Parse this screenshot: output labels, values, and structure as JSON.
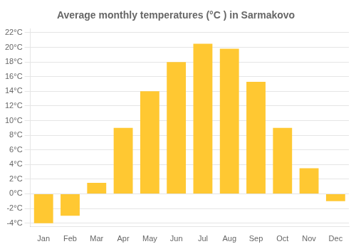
{
  "chart_data": {
    "type": "bar",
    "title": "Average monthly temperatures (°C ) in Sarmakovo",
    "categories": [
      "Jan",
      "Feb",
      "Mar",
      "Apr",
      "May",
      "Jun",
      "Jul",
      "Aug",
      "Sep",
      "Oct",
      "Nov",
      "Dec"
    ],
    "values": [
      -4,
      -3,
      1.5,
      9,
      14,
      18,
      20.5,
      19.8,
      15.3,
      9,
      3.5,
      -1
    ],
    "color": "#FFC832",
    "ylim": [
      -4.5,
      22.5
    ],
    "yticks": [
      {
        "value": -4,
        "label": "-4°C"
      },
      {
        "value": -2,
        "label": "-2°C"
      },
      {
        "value": 0,
        "label": "0°C"
      },
      {
        "value": 2,
        "label": "2°C"
      },
      {
        "value": 4,
        "label": "4°C"
      },
      {
        "value": 6,
        "label": "6°C"
      },
      {
        "value": 8,
        "label": "8°C"
      },
      {
        "value": 10,
        "label": "10°C"
      },
      {
        "value": 12,
        "label": "12°C"
      },
      {
        "value": 14,
        "label": "14°C"
      },
      {
        "value": 16,
        "label": "16°C"
      },
      {
        "value": 18,
        "label": "18°C"
      },
      {
        "value": 20,
        "label": "20°C"
      },
      {
        "value": 22,
        "label": "22°C"
      }
    ],
    "grid": true
  }
}
